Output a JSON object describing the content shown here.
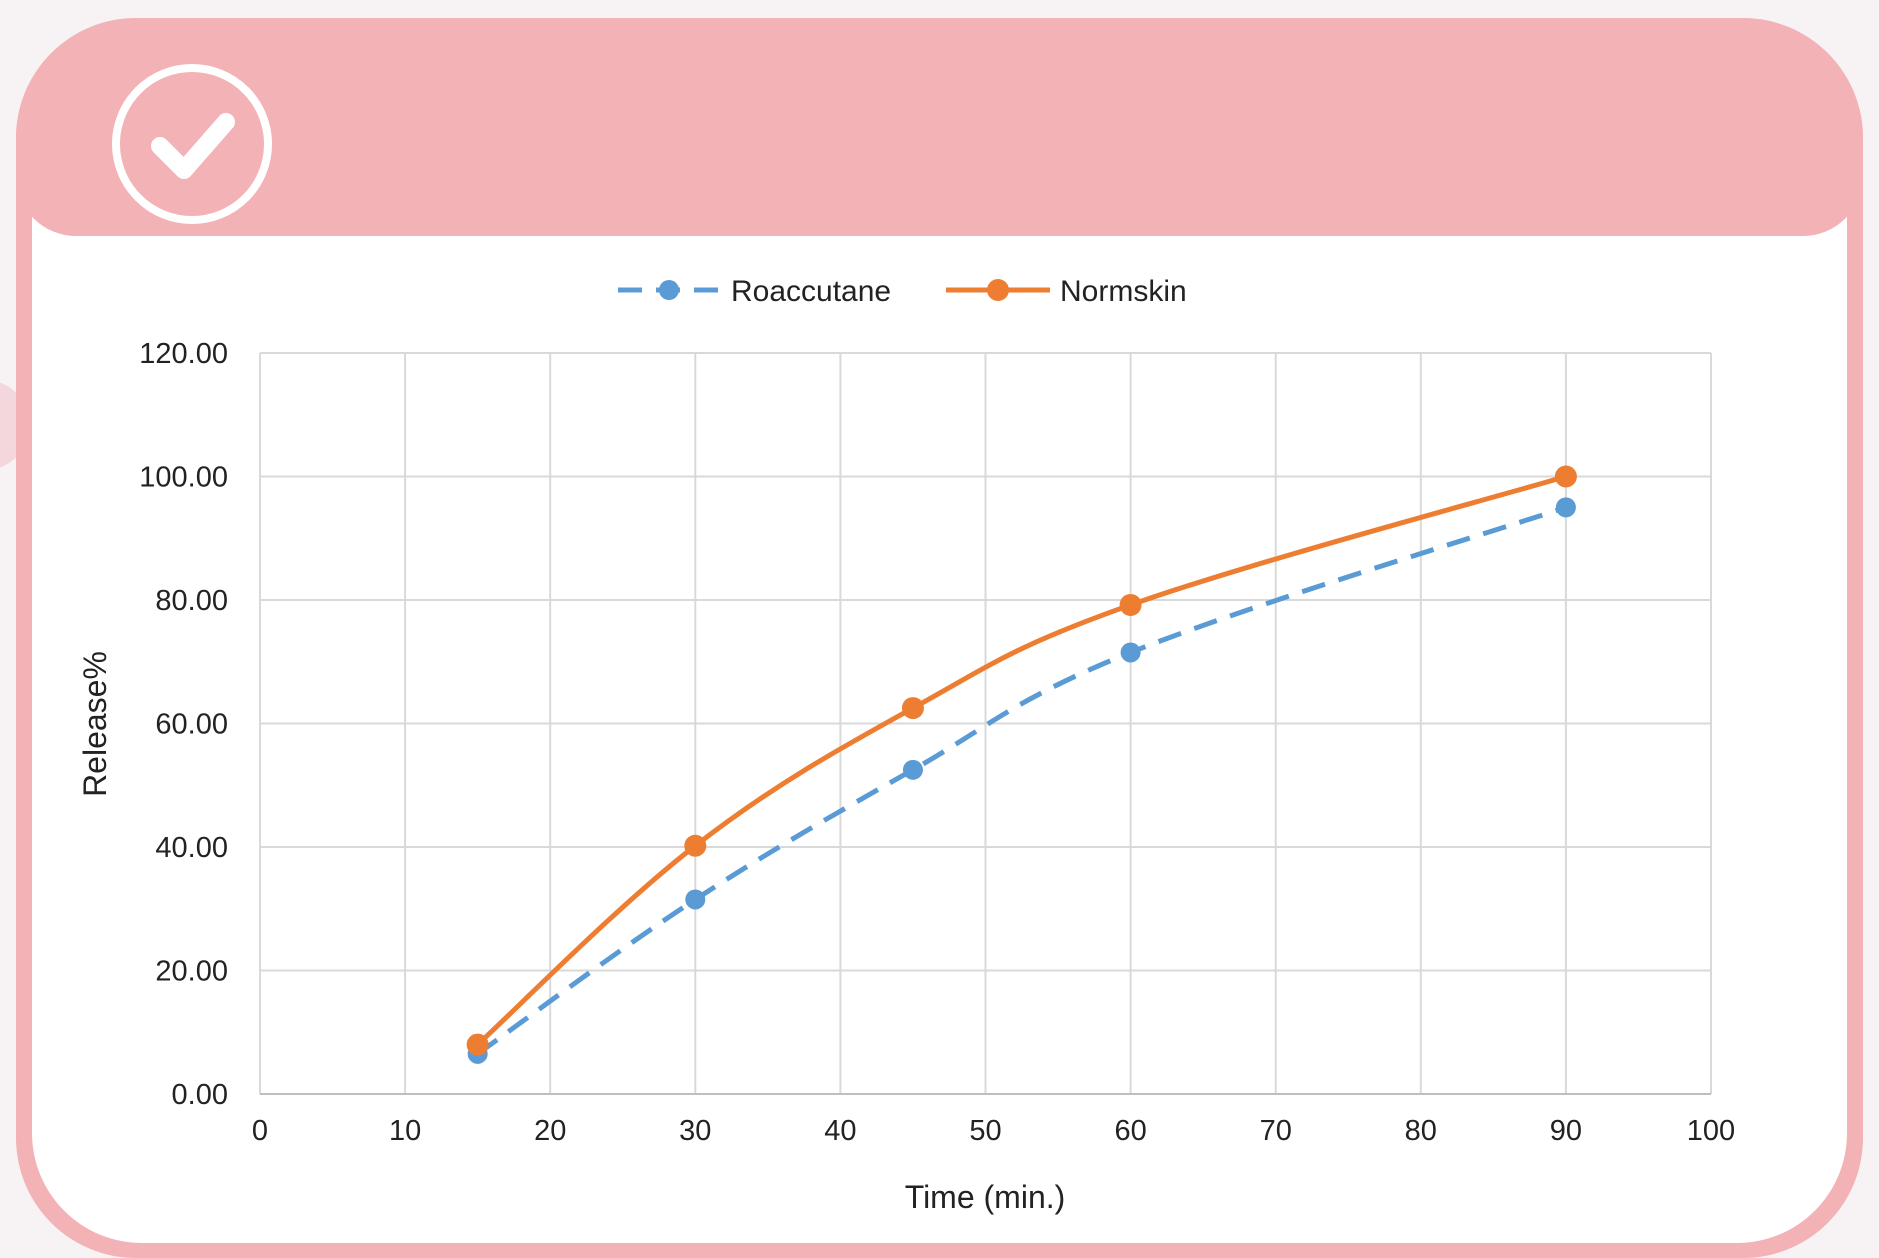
{
  "chart_data": {
    "type": "line",
    "x_axis": {
      "label": "Time (min.)",
      "range": [
        0,
        100
      ],
      "ticks": [
        "0",
        "10",
        "20",
        "30",
        "40",
        "50",
        "60",
        "70",
        "80",
        "90",
        "100"
      ]
    },
    "y_axis": {
      "label": "Release%",
      "range": [
        0,
        120
      ],
      "ticks": [
        "0.00",
        "20.00",
        "40.00",
        "60.00",
        "80.00",
        "100.00",
        "120.00"
      ]
    },
    "grid": true,
    "legend_position": "top",
    "series": [
      {
        "name": "Roaccutane",
        "color": "#5b9bd5",
        "style": "dashed",
        "x": [
          15,
          30,
          45,
          60,
          90
        ],
        "y": [
          6.5,
          31.5,
          52.5,
          71.5,
          95.0
        ]
      },
      {
        "name": "Normskin",
        "color": "#ed7d31",
        "style": "solid",
        "x": [
          15,
          30,
          45,
          60,
          90
        ],
        "y": [
          8.0,
          40.2,
          62.5,
          79.2,
          100.0
        ]
      }
    ]
  },
  "header": {
    "icon": "check-icon",
    "accent_color": "#f3b2b6"
  }
}
